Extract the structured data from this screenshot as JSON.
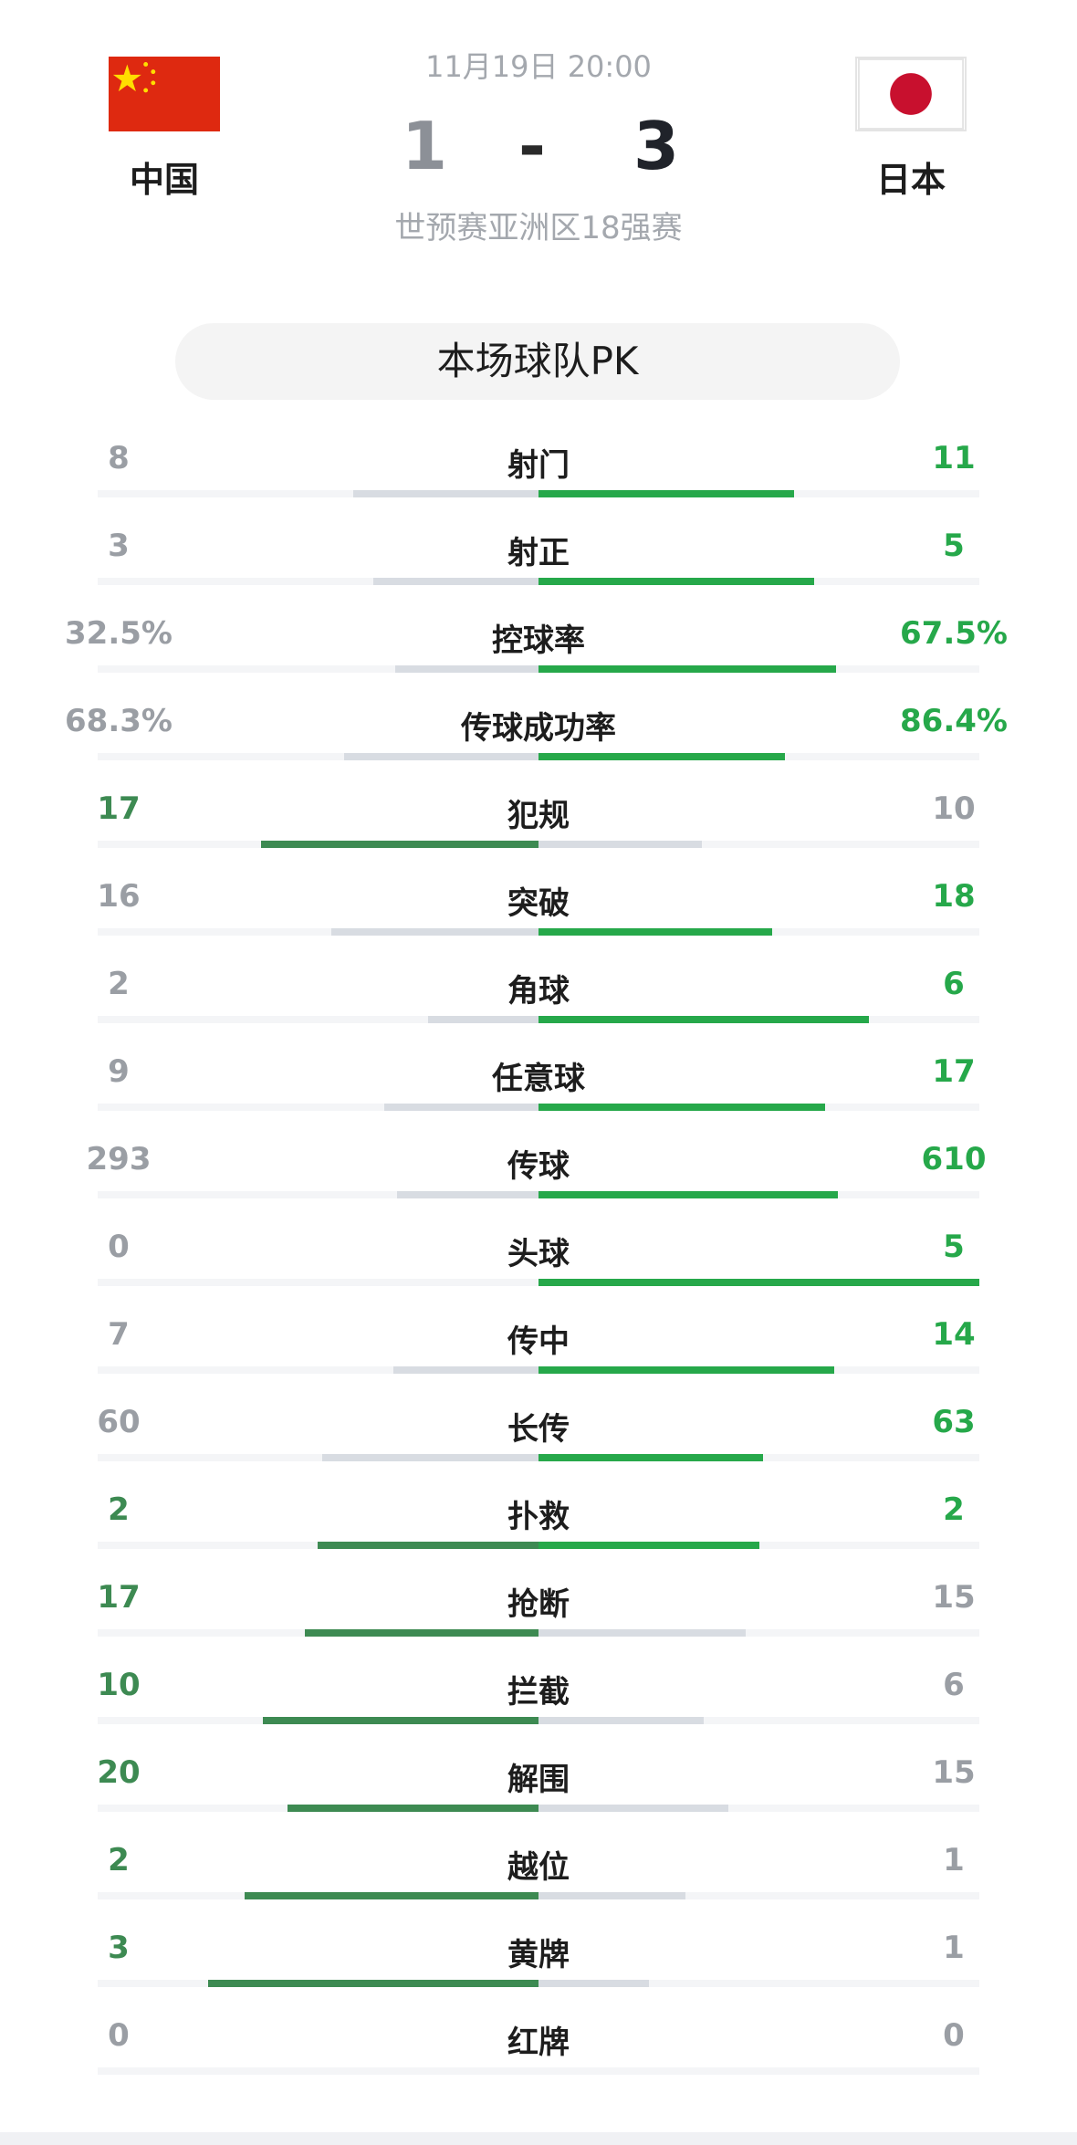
{
  "match": {
    "datetime": "11月19日 20:00",
    "competition": "世预赛亚洲区18强赛",
    "score_home": "1",
    "score_separator": "-",
    "score_away": "3"
  },
  "home_team": {
    "name": "中国",
    "flag_icon": "china-flag-icon"
  },
  "away_team": {
    "name": "日本",
    "flag_icon": "japan-flag-icon"
  },
  "pk_title": "本场球队PK",
  "colors": {
    "leader_left": "#3d8a52",
    "leader_right": "#26a84a",
    "trailing_bar": "#d8dce2",
    "trailing_text": "#9a9ea4"
  },
  "stats": [
    {
      "label": "射门",
      "home": "8",
      "away": "11",
      "home_share": 0.42,
      "away_share": 0.58
    },
    {
      "label": "射正",
      "home": "3",
      "away": "5",
      "home_share": 0.375,
      "away_share": 0.625
    },
    {
      "label": "控球率",
      "home": "32.5%",
      "away": "67.5%",
      "home_share": 0.325,
      "away_share": 0.675
    },
    {
      "label": "传球成功率",
      "home": "68.3%",
      "away": "86.4%",
      "home_share": 0.44,
      "away_share": 0.56
    },
    {
      "label": "犯规",
      "home": "17",
      "away": "10",
      "home_share": 0.63,
      "away_share": 0.37
    },
    {
      "label": "突破",
      "home": "16",
      "away": "18",
      "home_share": 0.47,
      "away_share": 0.53
    },
    {
      "label": "角球",
      "home": "2",
      "away": "6",
      "home_share": 0.25,
      "away_share": 0.75
    },
    {
      "label": "任意球",
      "home": "9",
      "away": "17",
      "home_share": 0.35,
      "away_share": 0.65
    },
    {
      "label": "传球",
      "home": "293",
      "away": "610",
      "home_share": 0.32,
      "away_share": 0.68
    },
    {
      "label": "头球",
      "home": "0",
      "away": "5",
      "home_share": 0,
      "away_share": 1
    },
    {
      "label": "传中",
      "home": "7",
      "away": "14",
      "home_share": 0.33,
      "away_share": 0.67
    },
    {
      "label": "长传",
      "home": "60",
      "away": "63",
      "home_share": 0.49,
      "away_share": 0.51
    },
    {
      "label": "扑救",
      "home": "2",
      "away": "2",
      "home_share": 0.5,
      "away_share": 0.5
    },
    {
      "label": "抢断",
      "home": "17",
      "away": "15",
      "home_share": 0.53,
      "away_share": 0.47
    },
    {
      "label": "拦截",
      "home": "10",
      "away": "6",
      "home_share": 0.625,
      "away_share": 0.375
    },
    {
      "label": "解围",
      "home": "20",
      "away": "15",
      "home_share": 0.57,
      "away_share": 0.43
    },
    {
      "label": "越位",
      "home": "2",
      "away": "1",
      "home_share": 0.667,
      "away_share": 0.333
    },
    {
      "label": "黄牌",
      "home": "3",
      "away": "1",
      "home_share": 0.75,
      "away_share": 0.25
    },
    {
      "label": "红牌",
      "home": "0",
      "away": "0",
      "home_share": 0,
      "away_share": 0
    }
  ]
}
